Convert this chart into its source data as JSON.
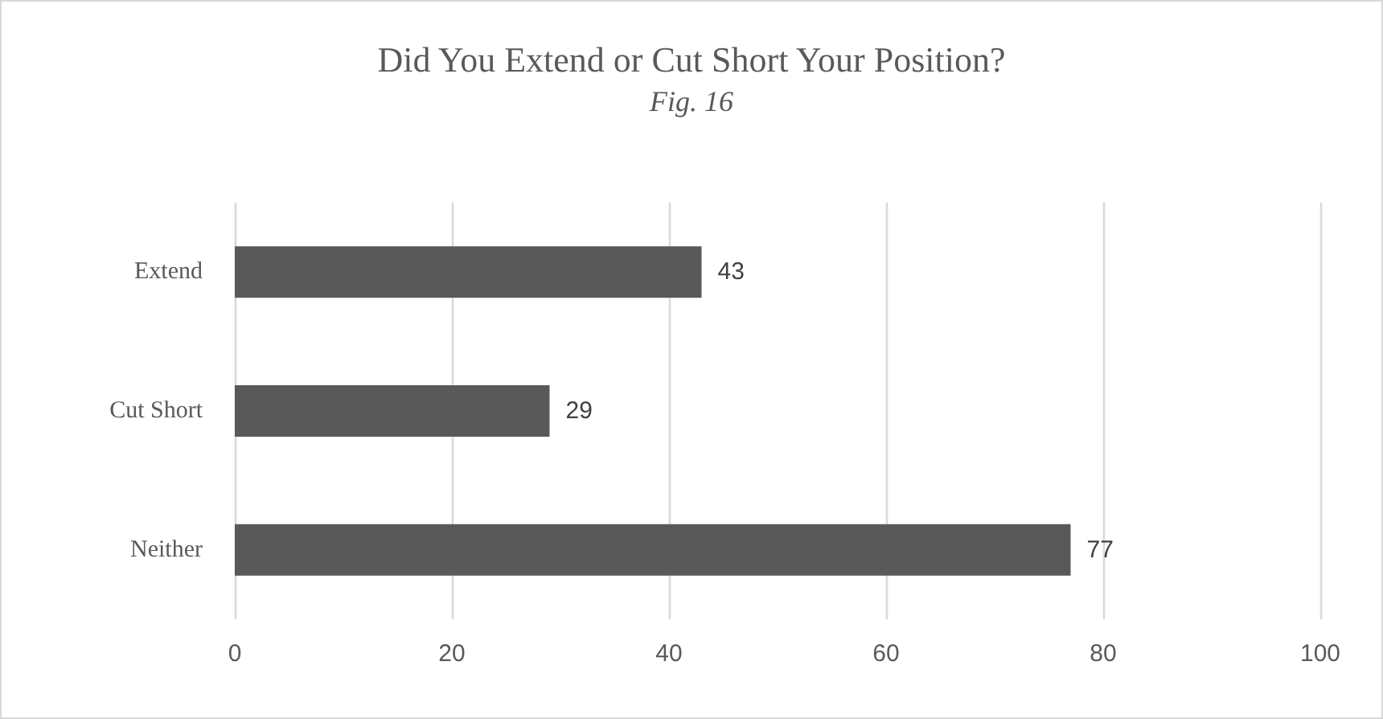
{
  "chart_data": {
    "type": "bar",
    "orientation": "horizontal",
    "title": "Did You Extend or Cut Short Your Position?",
    "subtitle": "Fig. 16",
    "categories": [
      "Extend",
      "Cut Short",
      "Neither"
    ],
    "values": [
      43,
      29,
      77
    ],
    "color": "#595959",
    "xlim": [
      0,
      100
    ],
    "xticks": [
      0,
      20,
      40,
      60,
      80,
      100
    ],
    "grid": "x",
    "data_labels": true
  }
}
